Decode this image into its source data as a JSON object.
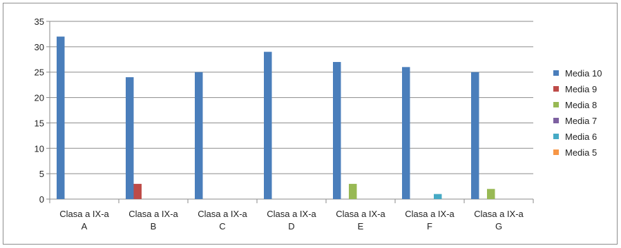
{
  "chart_data": {
    "type": "bar",
    "categories": [
      [
        "Clasa a IX-a",
        "A"
      ],
      [
        "Clasa a IX-a",
        "B"
      ],
      [
        "Clasa a IX-a",
        "C"
      ],
      [
        "Clasa a IX-a",
        "D"
      ],
      [
        "Clasa a IX-a",
        "E"
      ],
      [
        "Clasa a IX-a",
        "F"
      ],
      [
        "Clasa a IX-a",
        "G"
      ]
    ],
    "series": [
      {
        "name": "Media 10",
        "color": "#4a7ebb",
        "values": [
          32,
          24,
          25,
          29,
          27,
          26,
          25
        ]
      },
      {
        "name": "Media 9",
        "color": "#be4b48",
        "values": [
          0,
          3,
          0,
          0,
          0,
          0,
          0
        ]
      },
      {
        "name": "Media 8",
        "color": "#98b954",
        "values": [
          0,
          0,
          0,
          0,
          3,
          0,
          2
        ]
      },
      {
        "name": "Media 7",
        "color": "#7d60a0",
        "values": [
          0,
          0,
          0,
          0,
          0,
          0,
          0
        ]
      },
      {
        "name": "Media 6",
        "color": "#46aac5",
        "values": [
          0,
          0,
          0,
          0,
          0,
          1,
          0
        ]
      },
      {
        "name": "Media 5",
        "color": "#f79646",
        "values": [
          0,
          0,
          0,
          0,
          0,
          0,
          0
        ]
      }
    ],
    "ylim": [
      0,
      35
    ],
    "yticks": [
      0,
      5,
      10,
      15,
      20,
      25,
      30,
      35
    ],
    "grid": true,
    "legend": "right",
    "title": "",
    "xlabel": "",
    "ylabel": ""
  }
}
